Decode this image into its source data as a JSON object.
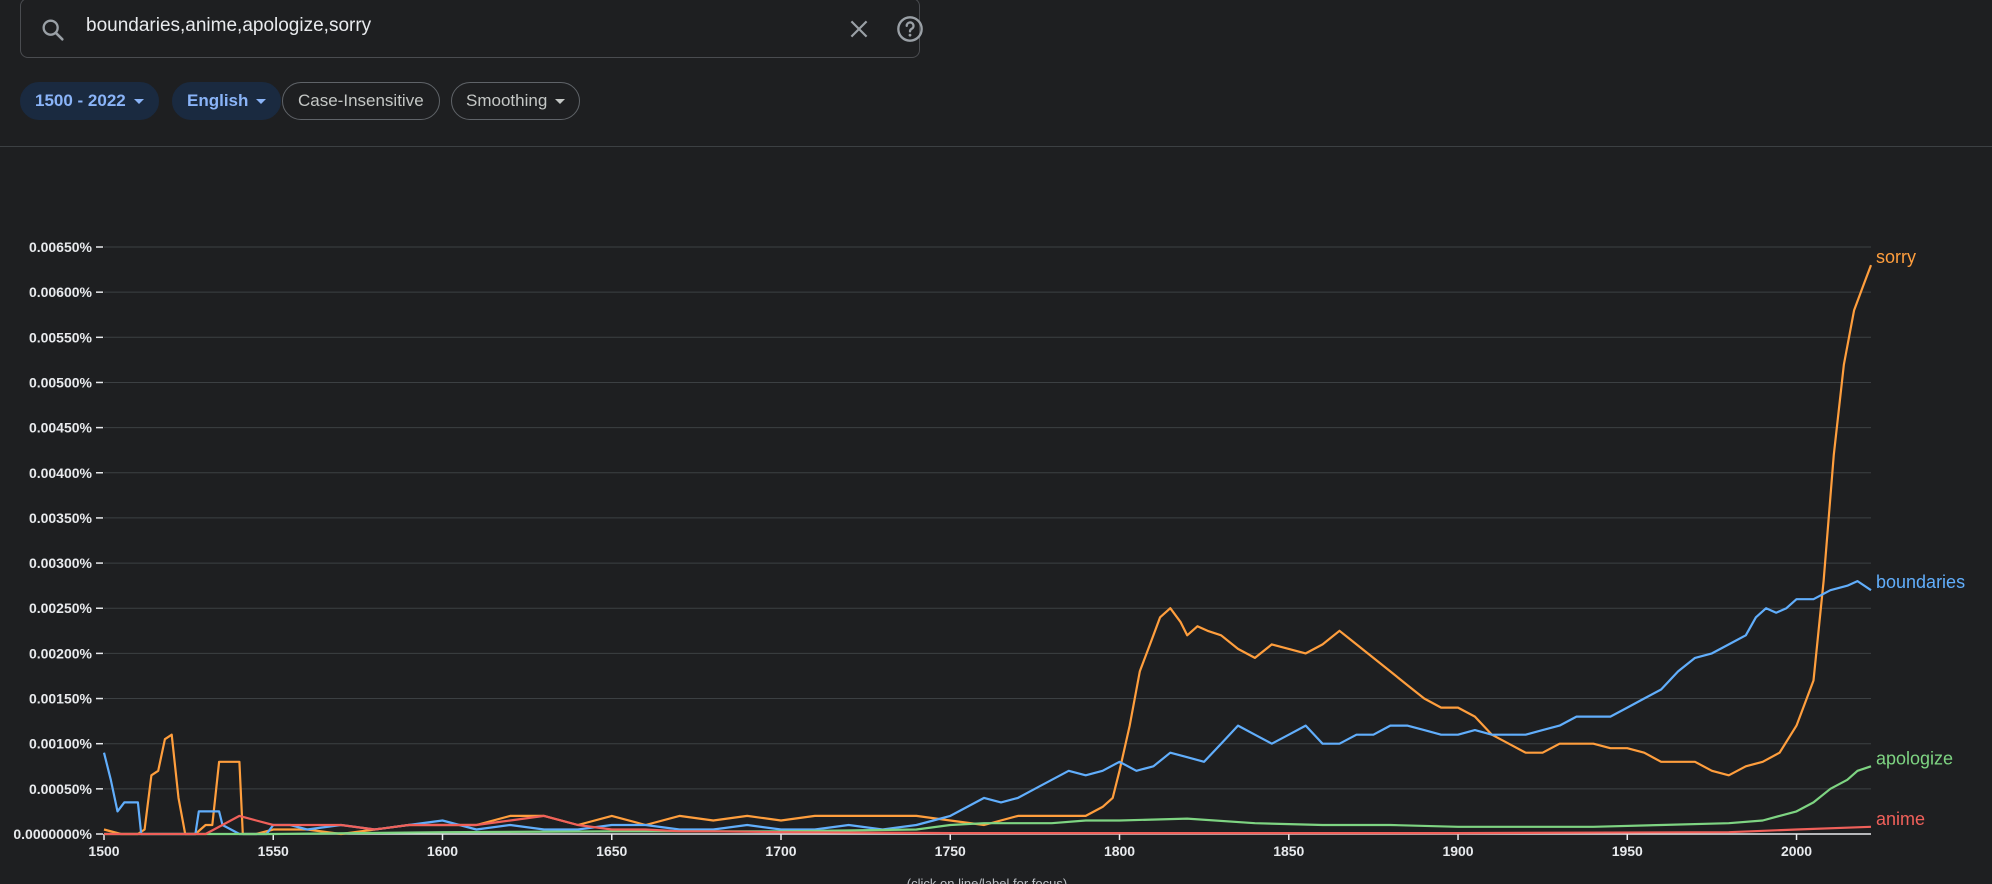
{
  "search": {
    "query": "boundaries,anime,apologize,sorry"
  },
  "filters": {
    "year_range": "1500 - 2022",
    "corpus": "English",
    "case": "Case-Insensitive",
    "smoothing": "Smoothing"
  },
  "chart_data": {
    "type": "line",
    "xlim": [
      1500,
      2022
    ],
    "ylim": [
      0,
      0.0065
    ],
    "x_ticks": [
      1500,
      1550,
      1600,
      1650,
      1700,
      1750,
      1800,
      1850,
      1900,
      1950,
      2000
    ],
    "y_ticks": [
      "0.0000000%",
      "0.00050%",
      "0.00100%",
      "0.00150%",
      "0.00200%",
      "0.00250%",
      "0.00300%",
      "0.00350%",
      "0.00400%",
      "0.00450%",
      "0.00500%",
      "0.00550%",
      "0.00600%",
      "0.00650%"
    ],
    "y_tick_values": [
      0,
      0.0005,
      0.001,
      0.0015,
      0.002,
      0.0025,
      0.003,
      0.0035,
      0.004,
      0.0045,
      0.005,
      0.0055,
      0.006,
      0.0065
    ],
    "note": "(click on line/label for focus)",
    "grid": true,
    "series": [
      {
        "name": "sorry",
        "color": "#ff9e3d",
        "points": [
          [
            1500,
            5e-05
          ],
          [
            1505,
            0.0
          ],
          [
            1510,
            0.0
          ],
          [
            1512,
            5e-05
          ],
          [
            1514,
            0.00065
          ],
          [
            1516,
            0.0007
          ],
          [
            1518,
            0.00105
          ],
          [
            1520,
            0.0011
          ],
          [
            1522,
            0.0004
          ],
          [
            1524,
            0.0
          ],
          [
            1527,
            0.0
          ],
          [
            1530,
            0.0001
          ],
          [
            1532,
            0.0001
          ],
          [
            1534,
            0.0008
          ],
          [
            1536,
            0.0008
          ],
          [
            1540,
            0.0008
          ],
          [
            1541,
            0.0
          ],
          [
            1545,
            0.0
          ],
          [
            1550,
            5e-05
          ],
          [
            1560,
            5e-05
          ],
          [
            1570,
            0.0
          ],
          [
            1580,
            5e-05
          ],
          [
            1590,
            0.0001
          ],
          [
            1600,
            0.0001
          ],
          [
            1610,
            0.0001
          ],
          [
            1620,
            0.0002
          ],
          [
            1630,
            0.0002
          ],
          [
            1640,
            0.0001
          ],
          [
            1650,
            0.0002
          ],
          [
            1660,
            0.0001
          ],
          [
            1670,
            0.0002
          ],
          [
            1680,
            0.00015
          ],
          [
            1690,
            0.0002
          ],
          [
            1700,
            0.00015
          ],
          [
            1710,
            0.0002
          ],
          [
            1720,
            0.0002
          ],
          [
            1730,
            0.0002
          ],
          [
            1740,
            0.0002
          ],
          [
            1750,
            0.00015
          ],
          [
            1760,
            0.0001
          ],
          [
            1770,
            0.0002
          ],
          [
            1780,
            0.0002
          ],
          [
            1790,
            0.0002
          ],
          [
            1795,
            0.0003
          ],
          [
            1798,
            0.0004
          ],
          [
            1800,
            0.0007
          ],
          [
            1803,
            0.0012
          ],
          [
            1806,
            0.0018
          ],
          [
            1809,
            0.0021
          ],
          [
            1812,
            0.0024
          ],
          [
            1815,
            0.0025
          ],
          [
            1818,
            0.00235
          ],
          [
            1820,
            0.0022
          ],
          [
            1823,
            0.0023
          ],
          [
            1826,
            0.00225
          ],
          [
            1830,
            0.0022
          ],
          [
            1835,
            0.00205
          ],
          [
            1840,
            0.00195
          ],
          [
            1845,
            0.0021
          ],
          [
            1850,
            0.00205
          ],
          [
            1855,
            0.002
          ],
          [
            1860,
            0.0021
          ],
          [
            1865,
            0.00225
          ],
          [
            1870,
            0.0021
          ],
          [
            1875,
            0.00195
          ],
          [
            1880,
            0.0018
          ],
          [
            1885,
            0.00165
          ],
          [
            1890,
            0.0015
          ],
          [
            1895,
            0.0014
          ],
          [
            1900,
            0.0014
          ],
          [
            1905,
            0.0013
          ],
          [
            1910,
            0.0011
          ],
          [
            1915,
            0.001
          ],
          [
            1920,
            0.0009
          ],
          [
            1925,
            0.0009
          ],
          [
            1930,
            0.001
          ],
          [
            1935,
            0.001
          ],
          [
            1940,
            0.001
          ],
          [
            1945,
            0.00095
          ],
          [
            1950,
            0.00095
          ],
          [
            1955,
            0.0009
          ],
          [
            1960,
            0.0008
          ],
          [
            1965,
            0.0008
          ],
          [
            1970,
            0.0008
          ],
          [
            1975,
            0.0007
          ],
          [
            1980,
            0.00065
          ],
          [
            1985,
            0.00075
          ],
          [
            1990,
            0.0008
          ],
          [
            1995,
            0.0009
          ],
          [
            2000,
            0.0012
          ],
          [
            2005,
            0.0017
          ],
          [
            2008,
            0.0028
          ],
          [
            2011,
            0.0042
          ],
          [
            2014,
            0.0052
          ],
          [
            2017,
            0.0058
          ],
          [
            2020,
            0.0061
          ],
          [
            2022,
            0.0063
          ]
        ]
      },
      {
        "name": "boundaries",
        "color": "#61aefc",
        "points": [
          [
            1500,
            0.0009
          ],
          [
            1502,
            0.0006
          ],
          [
            1504,
            0.00025
          ],
          [
            1506,
            0.00035
          ],
          [
            1510,
            0.00035
          ],
          [
            1511,
            0.0
          ],
          [
            1527,
            0.0
          ],
          [
            1528,
            0.00025
          ],
          [
            1532,
            0.00025
          ],
          [
            1534,
            0.00025
          ],
          [
            1535,
            0.0001
          ],
          [
            1540,
            0.0
          ],
          [
            1548,
            0.0
          ],
          [
            1550,
            0.0001
          ],
          [
            1555,
            0.0001
          ],
          [
            1560,
            5e-05
          ],
          [
            1570,
            0.0001
          ],
          [
            1580,
            5e-05
          ],
          [
            1590,
            0.0001
          ],
          [
            1600,
            0.00015
          ],
          [
            1610,
            5e-05
          ],
          [
            1620,
            0.0001
          ],
          [
            1630,
            5e-05
          ],
          [
            1640,
            5e-05
          ],
          [
            1650,
            0.0001
          ],
          [
            1660,
            0.0001
          ],
          [
            1670,
            5e-05
          ],
          [
            1680,
            5e-05
          ],
          [
            1690,
            0.0001
          ],
          [
            1700,
            5e-05
          ],
          [
            1710,
            5e-05
          ],
          [
            1720,
            0.0001
          ],
          [
            1730,
            5e-05
          ],
          [
            1740,
            0.0001
          ],
          [
            1745,
            0.00015
          ],
          [
            1750,
            0.0002
          ],
          [
            1755,
            0.0003
          ],
          [
            1760,
            0.0004
          ],
          [
            1765,
            0.00035
          ],
          [
            1770,
            0.0004
          ],
          [
            1775,
            0.0005
          ],
          [
            1780,
            0.0006
          ],
          [
            1785,
            0.0007
          ],
          [
            1790,
            0.00065
          ],
          [
            1795,
            0.0007
          ],
          [
            1800,
            0.0008
          ],
          [
            1805,
            0.0007
          ],
          [
            1810,
            0.00075
          ],
          [
            1815,
            0.0009
          ],
          [
            1820,
            0.00085
          ],
          [
            1825,
            0.0008
          ],
          [
            1830,
            0.001
          ],
          [
            1835,
            0.0012
          ],
          [
            1840,
            0.0011
          ],
          [
            1845,
            0.001
          ],
          [
            1850,
            0.0011
          ],
          [
            1855,
            0.0012
          ],
          [
            1860,
            0.001
          ],
          [
            1865,
            0.001
          ],
          [
            1870,
            0.0011
          ],
          [
            1875,
            0.0011
          ],
          [
            1880,
            0.0012
          ],
          [
            1885,
            0.0012
          ],
          [
            1890,
            0.00115
          ],
          [
            1895,
            0.0011
          ],
          [
            1900,
            0.0011
          ],
          [
            1905,
            0.00115
          ],
          [
            1910,
            0.0011
          ],
          [
            1915,
            0.0011
          ],
          [
            1920,
            0.0011
          ],
          [
            1925,
            0.00115
          ],
          [
            1930,
            0.0012
          ],
          [
            1935,
            0.0013
          ],
          [
            1940,
            0.0013
          ],
          [
            1945,
            0.0013
          ],
          [
            1950,
            0.0014
          ],
          [
            1955,
            0.0015
          ],
          [
            1960,
            0.0016
          ],
          [
            1965,
            0.0018
          ],
          [
            1970,
            0.00195
          ],
          [
            1975,
            0.002
          ],
          [
            1980,
            0.0021
          ],
          [
            1985,
            0.0022
          ],
          [
            1988,
            0.0024
          ],
          [
            1991,
            0.0025
          ],
          [
            1994,
            0.00245
          ],
          [
            1997,
            0.0025
          ],
          [
            2000,
            0.0026
          ],
          [
            2005,
            0.0026
          ],
          [
            2010,
            0.0027
          ],
          [
            2015,
            0.00275
          ],
          [
            2018,
            0.0028
          ],
          [
            2022,
            0.0027
          ]
        ]
      },
      {
        "name": "apologize",
        "color": "#7ed482",
        "points": [
          [
            1500,
            0.0
          ],
          [
            1550,
            0.0
          ],
          [
            1600,
            2e-05
          ],
          [
            1650,
            3e-05
          ],
          [
            1700,
            3e-05
          ],
          [
            1740,
            5e-05
          ],
          [
            1750,
            0.0001
          ],
          [
            1760,
            0.00012
          ],
          [
            1770,
            0.00012
          ],
          [
            1780,
            0.00012
          ],
          [
            1790,
            0.00015
          ],
          [
            1800,
            0.00015
          ],
          [
            1820,
            0.00017
          ],
          [
            1840,
            0.00012
          ],
          [
            1860,
            0.0001
          ],
          [
            1880,
            0.0001
          ],
          [
            1900,
            8e-05
          ],
          [
            1920,
            8e-05
          ],
          [
            1940,
            8e-05
          ],
          [
            1960,
            0.0001
          ],
          [
            1980,
            0.00012
          ],
          [
            1990,
            0.00015
          ],
          [
            1995,
            0.0002
          ],
          [
            2000,
            0.00025
          ],
          [
            2005,
            0.00035
          ],
          [
            2010,
            0.0005
          ],
          [
            2015,
            0.0006
          ],
          [
            2018,
            0.0007
          ],
          [
            2022,
            0.00075
          ]
        ]
      },
      {
        "name": "anime",
        "color": "#f0605a",
        "points": [
          [
            1500,
            0.0
          ],
          [
            1530,
            0.0
          ],
          [
            1540,
            0.0002
          ],
          [
            1545,
            0.00015
          ],
          [
            1550,
            0.0001
          ],
          [
            1560,
            0.0001
          ],
          [
            1570,
            0.0001
          ],
          [
            1580,
            5e-05
          ],
          [
            1590,
            0.0001
          ],
          [
            1600,
            0.0001
          ],
          [
            1610,
            0.0001
          ],
          [
            1620,
            0.00015
          ],
          [
            1630,
            0.0002
          ],
          [
            1640,
            0.0001
          ],
          [
            1650,
            5e-05
          ],
          [
            1660,
            5e-05
          ],
          [
            1670,
            3e-05
          ],
          [
            1680,
            3e-05
          ],
          [
            1700,
            2e-05
          ],
          [
            1750,
            1e-05
          ],
          [
            1800,
            1e-05
          ],
          [
            1900,
            1e-05
          ],
          [
            1980,
            2e-05
          ],
          [
            2000,
            5e-05
          ],
          [
            2022,
            8e-05
          ]
        ]
      }
    ]
  }
}
